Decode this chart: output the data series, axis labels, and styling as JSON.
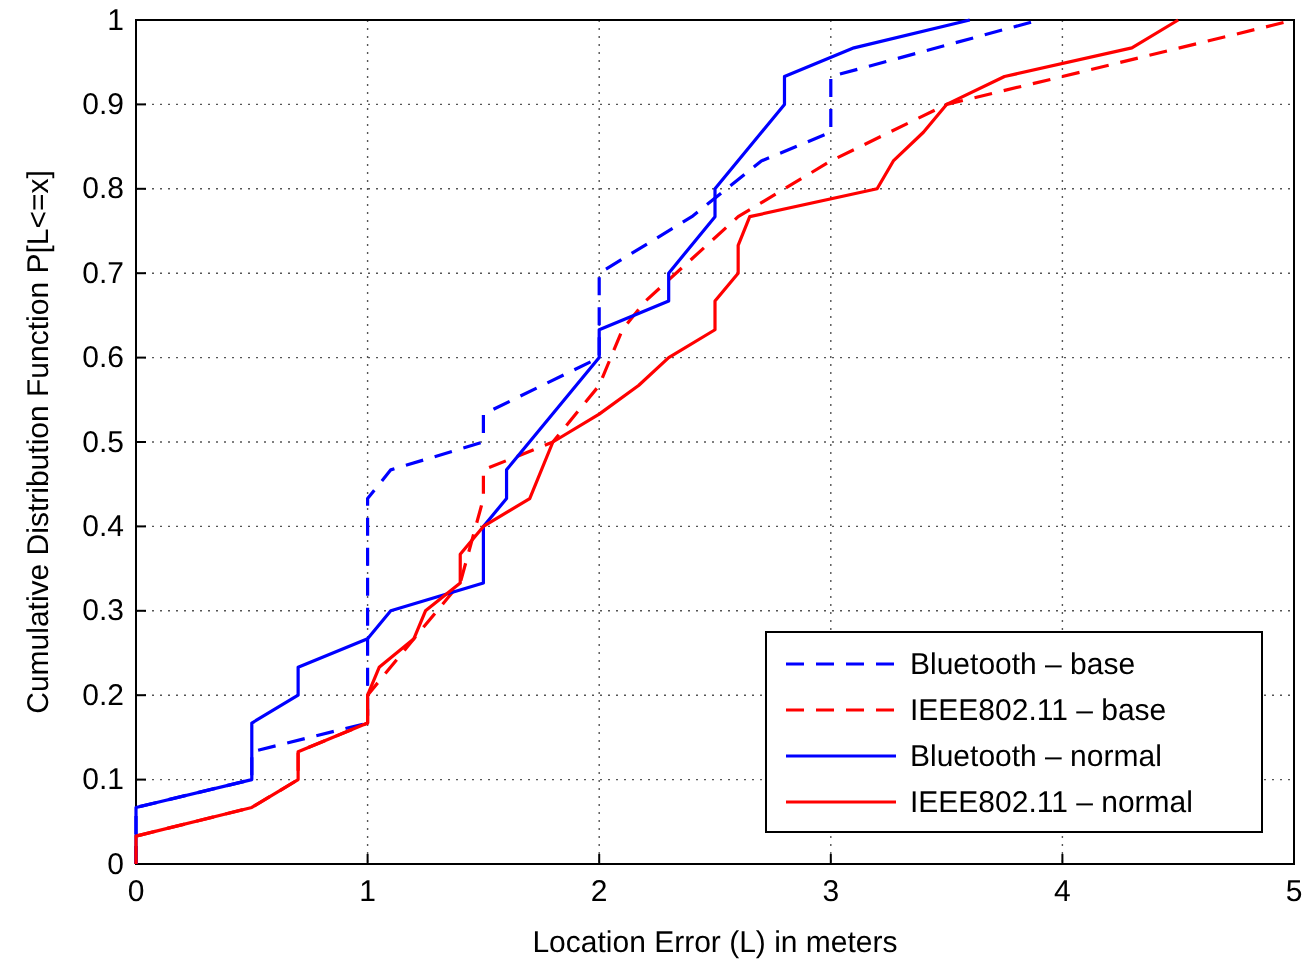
{
  "chart_data": {
    "type": "line",
    "xlabel": "Location Error (L) in meters",
    "ylabel": "Cumulative Distribution Function P[L<=x]",
    "xlim": [
      0,
      5
    ],
    "xticks": [
      0,
      1,
      2,
      3,
      4,
      5
    ],
    "ylim": [
      0,
      1
    ],
    "yticks": [
      0,
      0.1,
      0.2,
      0.3,
      0.4,
      0.5,
      0.6,
      0.7,
      0.8,
      0.9,
      1
    ],
    "grid": true,
    "legend": "bottom right",
    "series": [
      {
        "name": "Bluetooth – base",
        "color": "#0000ff",
        "line_style": "dashed",
        "x": [
          0,
          0,
          0.5,
          0.5,
          1,
          1,
          1.1,
          1.5,
          1.5,
          2,
          2,
          2.4,
          2.7,
          3,
          3,
          3.9
        ],
        "values": [
          0,
          0.067,
          0.1,
          0.133,
          0.167,
          0.433,
          0.467,
          0.5,
          0.533,
          0.6,
          0.7,
          0.767,
          0.833,
          0.867,
          0.933,
          1
        ]
      },
      {
        "name": "IEEE802.11 – base",
        "color": "#ff0000",
        "line_style": "dashed",
        "x": [
          0,
          0,
          0.5,
          0.7,
          0.7,
          1,
          1,
          1.2,
          1.4,
          1.5,
          1.5,
          1.8,
          2,
          2.1,
          2.2,
          2.6,
          3,
          3.5,
          4,
          5
        ],
        "values": [
          0,
          0.033,
          0.067,
          0.1,
          0.133,
          0.167,
          0.2,
          0.267,
          0.333,
          0.433,
          0.467,
          0.5,
          0.567,
          0.633,
          0.667,
          0.767,
          0.833,
          0.9,
          0.933,
          1
        ]
      },
      {
        "name": "Bluetooth – normal",
        "color": "#0000ff",
        "line_style": "solid",
        "x": [
          0,
          0,
          0.5,
          0.5,
          0.7,
          0.7,
          1,
          1.1,
          1.5,
          1.5,
          1.6,
          1.6,
          2,
          2,
          2.3,
          2.3,
          2.5,
          2.5,
          2.8,
          2.8,
          3.1,
          3.6
        ],
        "values": [
          0,
          0.067,
          0.1,
          0.167,
          0.2,
          0.233,
          0.267,
          0.3,
          0.333,
          0.4,
          0.433,
          0.467,
          0.6,
          0.633,
          0.667,
          0.7,
          0.767,
          0.8,
          0.9,
          0.933,
          0.967,
          1
        ]
      },
      {
        "name": "IEEE802.11 – normal",
        "color": "#ff0000",
        "line_style": "solid",
        "x": [
          0,
          0,
          0.5,
          0.7,
          0.7,
          1,
          1,
          1.05,
          1.2,
          1.25,
          1.4,
          1.4,
          1.5,
          1.7,
          1.8,
          2,
          2.17,
          2.3,
          2.5,
          2.5,
          2.6,
          2.6,
          2.65,
          3.2,
          3.27,
          3.4,
          3.5,
          3.75,
          4.3,
          4.5
        ],
        "values": [
          0,
          0.033,
          0.067,
          0.1,
          0.133,
          0.167,
          0.2,
          0.233,
          0.267,
          0.3,
          0.333,
          0.367,
          0.4,
          0.433,
          0.5,
          0.533,
          0.567,
          0.6,
          0.633,
          0.667,
          0.7,
          0.733,
          0.767,
          0.8,
          0.833,
          0.867,
          0.9,
          0.933,
          0.967,
          1
        ]
      }
    ]
  }
}
